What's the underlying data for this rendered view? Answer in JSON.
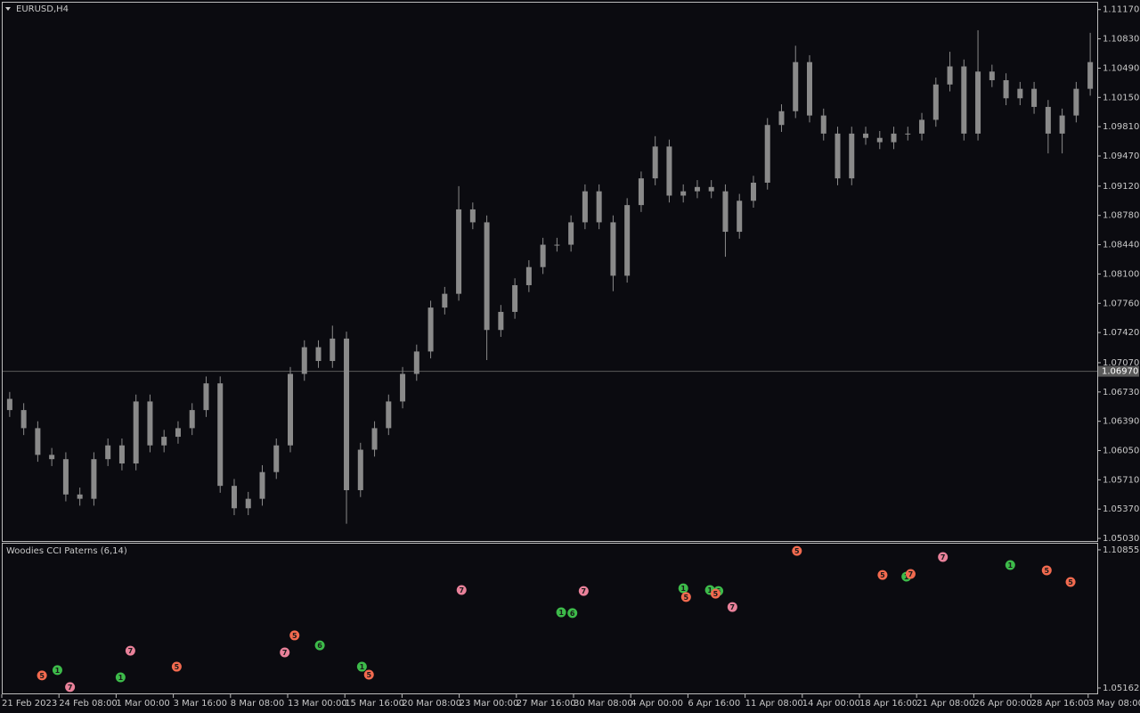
{
  "chart_data": [
    {
      "type": "candlestick",
      "title": "EURUSD,H4",
      "color": "#8a8a8a",
      "open": [
        1.0665,
        1.0652,
        1.0631,
        1.06,
        1.0595,
        1.0554,
        1.0549,
        1.0595,
        1.0611,
        1.059,
        1.0662,
        1.0611,
        1.0621,
        1.0631,
        1.0652,
        1.0683,
        1.0564,
        1.0538,
        1.0549,
        1.058,
        1.0611,
        1.0694,
        1.0725,
        1.0709,
        1.0735,
        1.0559,
        1.0606,
        1.0631,
        1.0662,
        1.0694,
        1.072,
        1.0771,
        1.0787,
        1.0885,
        1.087,
        1.0745,
        1.0766,
        1.0797,
        1.0818,
        1.0844,
        1.0844,
        1.087,
        1.0906,
        1.087,
        1.0808,
        1.089,
        1.0921,
        1.0958,
        1.0901,
        1.0906,
        1.0911,
        1.0906,
        1.0859,
        1.0895,
        1.0916,
        1.0983,
        1.0999,
        1.1056,
        1.0994,
        1.0973,
        1.0921,
        1.0973,
        1.0968,
        1.0963,
        1.0973,
        1.0973,
        1.0989,
        1.103,
        1.1051,
        1.0973,
        1.1045,
        1.1035,
        1.1014,
        1.1025,
        1.1004,
        1.0973,
        1.0994,
        1.1025
      ],
      "high": [
        1.0673,
        1.066,
        1.0639,
        1.0608,
        1.0603,
        1.0562,
        1.0603,
        1.0619,
        1.0619,
        1.067,
        1.067,
        1.0629,
        1.0639,
        1.066,
        1.0691,
        1.0691,
        1.0572,
        1.0557,
        1.0588,
        1.0619,
        1.0702,
        1.0733,
        1.0733,
        1.075,
        1.0743,
        1.0614,
        1.0639,
        1.067,
        1.0702,
        1.0728,
        1.0779,
        1.0795,
        1.0912,
        1.0893,
        1.0878,
        1.0774,
        1.0805,
        1.0826,
        1.0852,
        1.0852,
        1.0878,
        1.0914,
        1.0914,
        1.0878,
        1.0898,
        1.0929,
        1.097,
        1.0966,
        1.0914,
        1.0919,
        1.0919,
        1.0914,
        1.0903,
        1.0924,
        1.0991,
        1.1007,
        1.1075,
        1.1064,
        1.1002,
        1.0981,
        1.0981,
        1.0981,
        1.0976,
        1.0981,
        1.0981,
        1.0997,
        1.1038,
        1.1068,
        1.1059,
        1.1093,
        1.1053,
        1.1043,
        1.1033,
        1.1033,
        1.1012,
        1.1002,
        1.1033,
        1.109
      ],
      "low": [
        1.0644,
        1.0623,
        1.0592,
        1.0587,
        1.0546,
        1.0541,
        1.0541,
        1.0587,
        1.0582,
        1.0582,
        1.0603,
        1.0603,
        1.0613,
        1.0623,
        1.0644,
        1.0556,
        1.053,
        1.053,
        1.0541,
        1.0572,
        1.0603,
        1.0686,
        1.0701,
        1.0701,
        1.052,
        1.0551,
        1.0598,
        1.0623,
        1.0654,
        1.0686,
        1.0712,
        1.0763,
        1.0779,
        1.0862,
        1.071,
        1.0737,
        1.0758,
        1.0789,
        1.081,
        1.0836,
        1.0836,
        1.0862,
        1.0862,
        1.079,
        1.08,
        1.0882,
        1.0913,
        1.0893,
        1.0893,
        1.0898,
        1.0898,
        1.083,
        1.0851,
        1.0887,
        1.0908,
        1.0975,
        1.0991,
        1.0986,
        1.0965,
        1.0913,
        1.0913,
        1.096,
        1.0955,
        1.0955,
        1.0965,
        1.0965,
        1.0981,
        1.1022,
        1.0965,
        1.0965,
        1.1027,
        1.1006,
        1.1006,
        1.0996,
        1.095,
        1.095,
        1.0986,
        1.1017
      ],
      "close": [
        1.0652,
        1.0631,
        1.06,
        1.0595,
        1.0554,
        1.0549,
        1.0595,
        1.0611,
        1.059,
        1.0662,
        1.0611,
        1.0621,
        1.0631,
        1.0652,
        1.0683,
        1.0564,
        1.0538,
        1.0549,
        1.058,
        1.0611,
        1.0694,
        1.0725,
        1.0709,
        1.0735,
        1.0559,
        1.0606,
        1.0631,
        1.0662,
        1.0694,
        1.072,
        1.0771,
        1.0787,
        1.0885,
        1.087,
        1.0745,
        1.0766,
        1.0797,
        1.0818,
        1.0844,
        1.0844,
        1.087,
        1.0906,
        1.087,
        1.0808,
        1.089,
        1.0921,
        1.0958,
        1.0901,
        1.0906,
        1.0911,
        1.0906,
        1.0859,
        1.0895,
        1.0916,
        1.0983,
        1.0999,
        1.1056,
        1.0994,
        1.0973,
        1.0921,
        1.0973,
        1.0968,
        1.0963,
        1.0973,
        1.0973,
        1.0989,
        1.103,
        1.1051,
        1.0973,
        1.1045,
        1.1035,
        1.1014,
        1.1025,
        1.1004,
        1.0973,
        1.0994,
        1.1025,
        1.1056
      ],
      "ylim": [
        1.05,
        1.1125
      ],
      "yticks": [
        {
          "value": 1.1117,
          "label": "1.11170"
        },
        {
          "value": 1.1083,
          "label": "1.10830"
        },
        {
          "value": 1.1049,
          "label": "1.10490"
        },
        {
          "value": 1.1015,
          "label": "1.10150"
        },
        {
          "value": 1.0981,
          "label": "1.09810"
        },
        {
          "value": 1.0947,
          "label": "1.09470"
        },
        {
          "value": 1.0912,
          "label": "1.09120"
        },
        {
          "value": 1.0878,
          "label": "1.08780"
        },
        {
          "value": 1.0844,
          "label": "1.08440"
        },
        {
          "value": 1.081,
          "label": "1.08100"
        },
        {
          "value": 1.0776,
          "label": "1.07760"
        },
        {
          "value": 1.0742,
          "label": "1.07420"
        },
        {
          "value": 1.0707,
          "label": "1.07070"
        },
        {
          "value": 1.0673,
          "label": "1.06730"
        },
        {
          "value": 1.0639,
          "label": "1.06390"
        },
        {
          "value": 1.0605,
          "label": "1.06050"
        },
        {
          "value": 1.0571,
          "label": "1.05710"
        },
        {
          "value": 1.0537,
          "label": "1.05370"
        },
        {
          "value": 1.0503,
          "label": "1.05030"
        }
      ],
      "current_price": {
        "value": 1.0697,
        "label": "1.06970"
      },
      "x_labels": [
        "21 Feb 2023",
        "24 Feb 08:00",
        "1 Mar 00:00",
        "3 Mar 16:00",
        "8 Mar 08:00",
        "13 Mar 00:00",
        "15 Mar 16:00",
        "20 Mar 08:00",
        "23 Mar 00:00",
        "27 Mar 16:00",
        "30 Mar 08:00",
        "4 Apr 00:00",
        "6 Apr 16:00",
        "11 Apr 08:00",
        "14 Apr 00:00",
        "18 Apr 16:00",
        "21 Apr 08:00",
        "26 Apr 00:00",
        "28 Apr 16:00",
        "3 May 08:00"
      ]
    },
    {
      "type": "scatter",
      "title": "Woodies CCI Paterns (6,14)",
      "xlim": [
        -0.5,
        77.5
      ],
      "ylim": [
        1.0494,
        1.1111
      ],
      "yticks": [
        {
          "value": 1.10855,
          "label": "1.10855"
        },
        {
          "value": 1.05162,
          "label": "1.05162"
        }
      ],
      "points": [
        {
          "x": 2.3,
          "y": 1.0568,
          "label": "5",
          "color": "#f26a4f"
        },
        {
          "x": 3.4,
          "y": 1.059,
          "label": "1",
          "color": "#3dbb4a"
        },
        {
          "x": 4.3,
          "y": 1.052,
          "label": "7",
          "color": "#e9819a"
        },
        {
          "x": 7.9,
          "y": 1.056,
          "label": "1",
          "color": "#3dbb4a"
        },
        {
          "x": 8.6,
          "y": 1.067,
          "label": "7",
          "color": "#e9819a"
        },
        {
          "x": 11.9,
          "y": 1.0604,
          "label": "5",
          "color": "#f26a4f"
        },
        {
          "x": 19.6,
          "y": 1.0663,
          "label": "7",
          "color": "#e9819a"
        },
        {
          "x": 20.3,
          "y": 1.0733,
          "label": "5",
          "color": "#f26a4f"
        },
        {
          "x": 22.1,
          "y": 1.0692,
          "label": "6",
          "color": "#3dbb4a"
        },
        {
          "x": 25.1,
          "y": 1.0604,
          "label": "1",
          "color": "#3dbb4a"
        },
        {
          "x": 25.6,
          "y": 1.0571,
          "label": "5",
          "color": "#f26a4f"
        },
        {
          "x": 32.2,
          "y": 1.092,
          "label": "7",
          "color": "#e9819a"
        },
        {
          "x": 39.3,
          "y": 1.0828,
          "label": "1",
          "color": "#3dbb4a"
        },
        {
          "x": 40.1,
          "y": 1.0825,
          "label": "6",
          "color": "#3dbb4a"
        },
        {
          "x": 40.9,
          "y": 1.0916,
          "label": "7",
          "color": "#e9819a"
        },
        {
          "x": 48.0,
          "y": 1.0927,
          "label": "1",
          "color": "#3dbb4a"
        },
        {
          "x": 48.2,
          "y": 1.0891,
          "label": "5",
          "color": "#f26a4f"
        },
        {
          "x": 49.9,
          "y": 1.092,
          "label": "1",
          "color": "#3dbb4a"
        },
        {
          "x": 50.5,
          "y": 1.0916,
          "label": "6",
          "color": "#3dbb4a"
        },
        {
          "x": 50.3,
          "y": 1.0905,
          "label": "5",
          "color": "#f26a4f"
        },
        {
          "x": 51.5,
          "y": 1.085,
          "label": "7",
          "color": "#e9819a"
        },
        {
          "x": 56.1,
          "y": 1.1081,
          "label": "5",
          "color": "#f26a4f"
        },
        {
          "x": 62.2,
          "y": 1.0982,
          "label": "5",
          "color": "#f26a4f"
        },
        {
          "x": 63.9,
          "y": 1.0975,
          "label": "1",
          "color": "#3dbb4a"
        },
        {
          "x": 64.2,
          "y": 1.0986,
          "label": "7",
          "color": "#f26a4f"
        },
        {
          "x": 66.5,
          "y": 1.1056,
          "label": "7",
          "color": "#e9819a"
        },
        {
          "x": 71.3,
          "y": 1.1023,
          "label": "1",
          "color": "#3dbb4a"
        },
        {
          "x": 73.9,
          "y": 1.1001,
          "label": "5",
          "color": "#f26a4f"
        },
        {
          "x": 75.6,
          "y": 1.0953,
          "label": "5",
          "color": "#f26a4f"
        }
      ]
    }
  ]
}
